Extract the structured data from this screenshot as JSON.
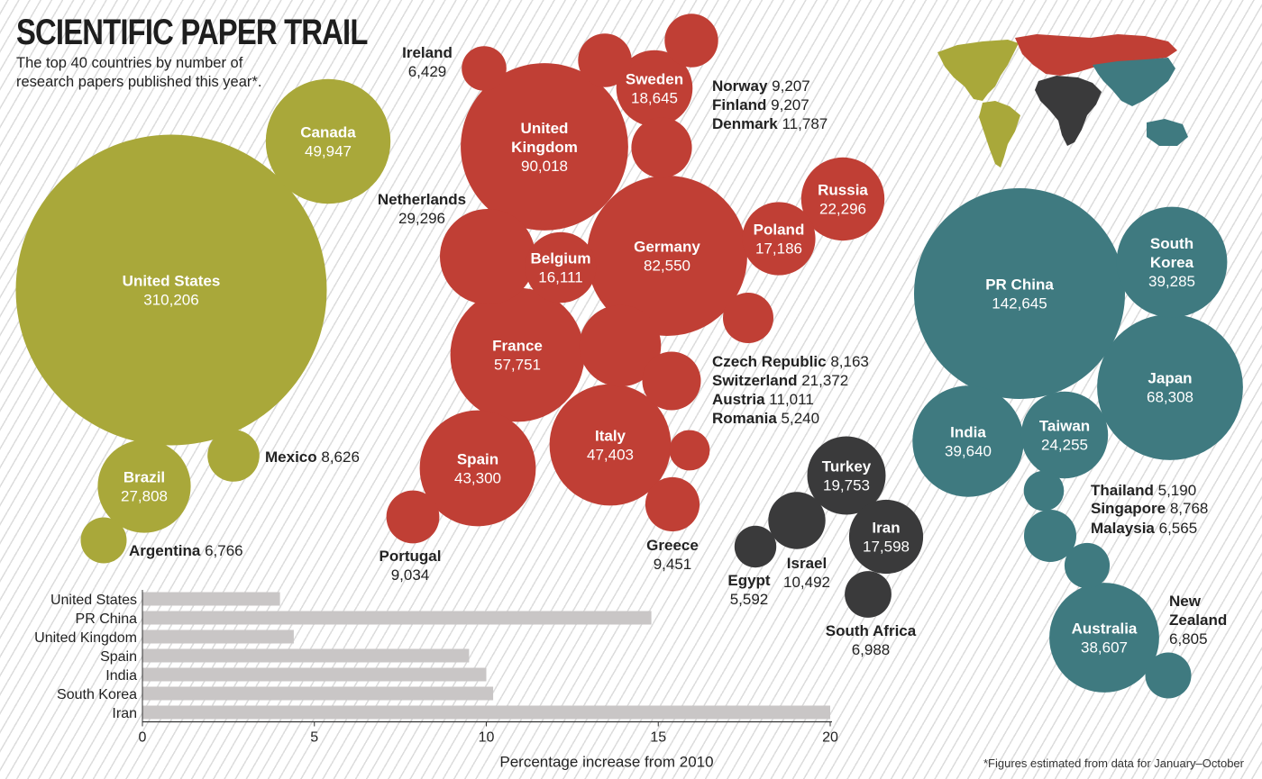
{
  "title": "SCIENTIFIC PAPER TRAIL",
  "subtitle": "The top 40 countries by number of research papers published this year*.",
  "footnote": "*Figures estimated from data for January–October",
  "colors": {
    "americas": "#a9a83a",
    "europe": "#c03f35",
    "africa_middle_east": "#3a3a3b",
    "asia_pacific": "#3f7a80",
    "bar": "#c9c6c6",
    "label_on_bubble": "#ffffff",
    "label_outside": "#222222"
  },
  "chart_data": [
    {
      "type": "bubble",
      "groups": [
        {
          "region": "americas",
          "countries": [
            {
              "name": "United States",
              "value": 310206
            },
            {
              "name": "Canada",
              "value": 49947
            },
            {
              "name": "Brazil",
              "value": 27808
            },
            {
              "name": "Mexico",
              "value": 8626
            },
            {
              "name": "Argentina",
              "value": 6766
            }
          ]
        },
        {
          "region": "europe",
          "countries": [
            {
              "name": "United Kingdom",
              "value": 90018
            },
            {
              "name": "Germany",
              "value": 82550
            },
            {
              "name": "France",
              "value": 57751
            },
            {
              "name": "Italy",
              "value": 47403
            },
            {
              "name": "Spain",
              "value": 43300
            },
            {
              "name": "Netherlands",
              "value": 29296
            },
            {
              "name": "Russia",
              "value": 22296
            },
            {
              "name": "Switzerland",
              "value": 21372
            },
            {
              "name": "Sweden",
              "value": 18645
            },
            {
              "name": "Poland",
              "value": 17186
            },
            {
              "name": "Belgium",
              "value": 16111
            },
            {
              "name": "Denmark",
              "value": 11787
            },
            {
              "name": "Austria",
              "value": 11011
            },
            {
              "name": "Greece",
              "value": 9451
            },
            {
              "name": "Norway",
              "value": 9207
            },
            {
              "name": "Finland",
              "value": 9207
            },
            {
              "name": "Portugal",
              "value": 9034
            },
            {
              "name": "Czech Republic",
              "value": 8163
            },
            {
              "name": "Ireland",
              "value": 6429
            },
            {
              "name": "Romania",
              "value": 5240
            }
          ]
        },
        {
          "region": "africa_middle_east",
          "countries": [
            {
              "name": "Turkey",
              "value": 19753
            },
            {
              "name": "Iran",
              "value": 17598
            },
            {
              "name": "Israel",
              "value": 10492
            },
            {
              "name": "South Africa",
              "value": 6988
            },
            {
              "name": "Egypt",
              "value": 5592
            }
          ]
        },
        {
          "region": "asia_pacific",
          "countries": [
            {
              "name": "PR China",
              "value": 142645
            },
            {
              "name": "Japan",
              "value": 68308
            },
            {
              "name": "India",
              "value": 39640
            },
            {
              "name": "South Korea",
              "value": 39285
            },
            {
              "name": "Australia",
              "value": 38607
            },
            {
              "name": "Taiwan",
              "value": 24255
            },
            {
              "name": "Singapore",
              "value": 8768
            },
            {
              "name": "New Zealand",
              "value": 6805
            },
            {
              "name": "Malaysia",
              "value": 6565
            },
            {
              "name": "Thailand",
              "value": 5190
            }
          ]
        }
      ]
    },
    {
      "type": "bar",
      "orientation": "horizontal",
      "categories": [
        "United States",
        "PR China",
        "United Kingdom",
        "Spain",
        "India",
        "South Korea",
        "Iran"
      ],
      "values": [
        4.0,
        14.8,
        4.4,
        9.5,
        10.0,
        10.2,
        20.0
      ],
      "xlabel": "Percentage increase from 2010",
      "xlim": [
        0,
        20
      ],
      "xticks": [
        "0",
        "5",
        "10",
        "15",
        "20"
      ]
    }
  ]
}
